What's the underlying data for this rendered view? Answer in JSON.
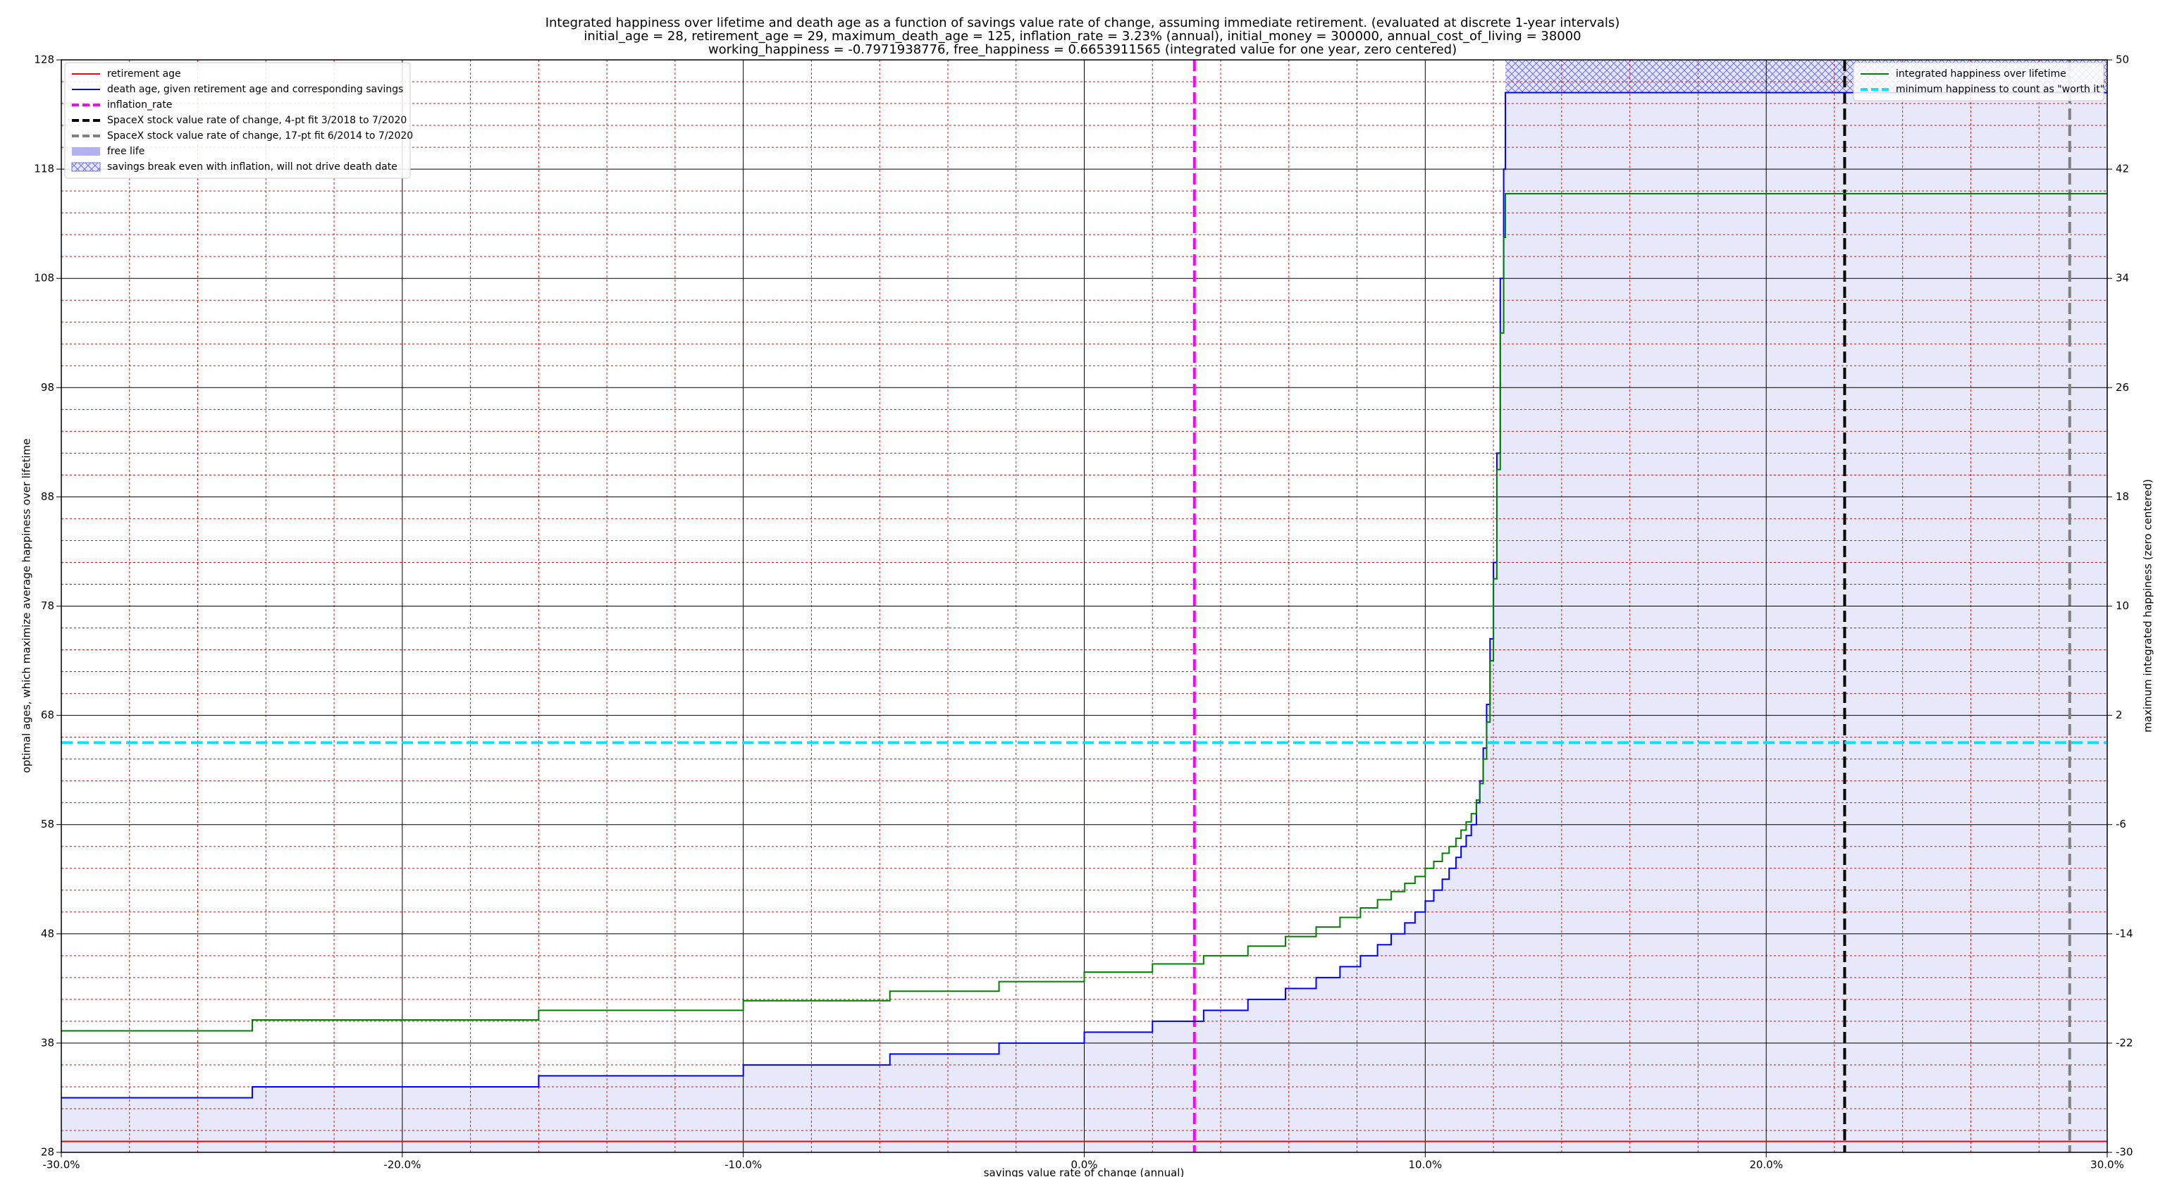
{
  "chart_data": {
    "type": "step",
    "title": [
      "Integrated happiness over lifetime and death age as a function of savings value rate of change, assuming immediate retirement. (evaluated at discrete 1-year intervals)",
      "initial_age = 28, retirement_age = 29, maximum_death_age = 125, inflation_rate = 3.23% (annual), initial_money = 300000, annual_cost_of_living = 38000",
      "working_happiness = -0.7971938776, free_happiness = 0.6653911565 (integrated value for one year, zero centered)"
    ],
    "xlabel": "savings value rate of change (annual)",
    "ylabel": "optimal ages, which maximize average happiness over lifetime",
    "y2label": "maximum integrated happiness (zero centered)",
    "xlim": [
      -30,
      30
    ],
    "ylim": [
      28,
      128
    ],
    "y2lim": [
      -30,
      50
    ],
    "xticks": [
      {
        "value": -30,
        "label": "-30.0%"
      },
      {
        "value": -20,
        "label": "-20.0%"
      },
      {
        "value": -10,
        "label": "-10.0%"
      },
      {
        "value": 0,
        "label": "0.0%"
      },
      {
        "value": 10,
        "label": "10.0%"
      },
      {
        "value": 20,
        "label": "20.0%"
      },
      {
        "value": 30,
        "label": "30.0%"
      }
    ],
    "yticks": [
      28,
      38,
      48,
      58,
      68,
      78,
      88,
      98,
      108,
      118,
      128
    ],
    "y2ticks": [
      -30,
      -22,
      -14,
      -6,
      2,
      10,
      18,
      26,
      34,
      42,
      50
    ],
    "xminorticks": [
      -28,
      -26,
      -24,
      -22,
      -18,
      -16,
      -14,
      -12,
      -8,
      -6,
      -4,
      -2,
      2,
      4,
      6,
      8,
      12,
      14,
      16,
      18,
      22,
      24,
      26,
      28
    ],
    "yminorticks": [
      30,
      32,
      34,
      36,
      40,
      42,
      44,
      46,
      50,
      52,
      54,
      56,
      60,
      62,
      64,
      66,
      70,
      72,
      74,
      76,
      80,
      82,
      84,
      86,
      90,
      92,
      94,
      96,
      100,
      102,
      104,
      106,
      110,
      112,
      114,
      116,
      120,
      122,
      124,
      126
    ],
    "grid": true,
    "major_grid_color": "#000000",
    "minor_grid_color": "#ff0000",
    "legend": "upper left",
    "legend2": "upper right",
    "x": [
      -30,
      30
    ],
    "series": [
      {
        "name": "retirement age",
        "color": "#ff0000",
        "axis": "y",
        "x": [
          -30,
          30
        ],
        "values": [
          29,
          29
        ]
      },
      {
        "name": "death age, given retirement age and corresponding savings",
        "color": "#0000ff",
        "axis": "y",
        "x": [
          -30,
          -24.4,
          -16.0,
          -10.0,
          -5.7,
          -2.5,
          0,
          2.0,
          3.5,
          4.8,
          5.9,
          6.8,
          7.5,
          8.1,
          8.6,
          9.0,
          9.4,
          9.7,
          10.0,
          10.25,
          10.5,
          10.7,
          10.9,
          11.05,
          11.2,
          11.35,
          11.5,
          11.6,
          11.7,
          11.8,
          11.9,
          12.0,
          12.1,
          12.2,
          12.3,
          12.35,
          30
        ],
        "values": [
          33,
          34,
          35,
          36,
          37,
          38,
          39,
          40,
          41,
          42,
          43,
          44,
          45,
          46,
          47,
          48,
          49,
          50,
          51,
          52,
          53,
          54,
          55,
          56,
          57,
          58,
          60,
          62,
          65,
          69,
          75,
          82,
          92,
          108,
          118,
          125,
          125
        ]
      },
      {
        "name": "integrated happiness over lifetime",
        "color": "#008000",
        "axis": "y2",
        "x": [
          -30,
          -24.4,
          -16.0,
          -10.0,
          -5.7,
          -2.5,
          0,
          2.0,
          3.5,
          4.8,
          5.9,
          6.8,
          7.5,
          8.1,
          8.6,
          9.0,
          9.4,
          9.7,
          10.0,
          10.25,
          10.5,
          10.7,
          10.9,
          11.05,
          11.2,
          11.35,
          11.5,
          11.6,
          11.7,
          11.8,
          11.9,
          12.0,
          12.1,
          12.2,
          12.3,
          12.35,
          30
        ],
        "values": [
          -21.1,
          -20.3,
          -19.6,
          -18.9,
          -18.2,
          -17.5,
          -16.8,
          -16.2,
          -15.6,
          -14.9,
          -14.2,
          -13.5,
          -12.8,
          -12.1,
          -11.5,
          -10.9,
          -10.3,
          -9.8,
          -9.2,
          -8.7,
          -8.1,
          -7.6,
          -7.0,
          -6.4,
          -5.8,
          -5.2,
          -4.2,
          -3.0,
          -1.2,
          1.5,
          6,
          12,
          20,
          30,
          37,
          40.2,
          40.2
        ]
      }
    ],
    "vlines": [
      {
        "name": "inflation_rate",
        "color": "#ff00ff",
        "value": 3.23
      },
      {
        "name": "SpaceX stock value rate of change, 4-pt fit 3/2018 to 7/2020",
        "color": "#000000",
        "value": 22.3
      },
      {
        "name": "SpaceX stock value rate of change, 17-pt fit 6/2014 to 7/2020",
        "color": "#808080",
        "value": 28.9
      }
    ],
    "hlines": [
      {
        "name": "minimum happiness to count as \"worth it\"",
        "color": "#00e5ff",
        "axis": "y2",
        "value": 0
      }
    ],
    "fills": [
      {
        "name": "free life",
        "color": "#b2b2f2",
        "under": 1
      },
      {
        "name": "savings break even with inflation, will not drive death date",
        "color": "#7070e0",
        "x": [
          12.35,
          30
        ],
        "y": [
          125,
          128
        ],
        "hatch": "xx"
      }
    ]
  }
}
